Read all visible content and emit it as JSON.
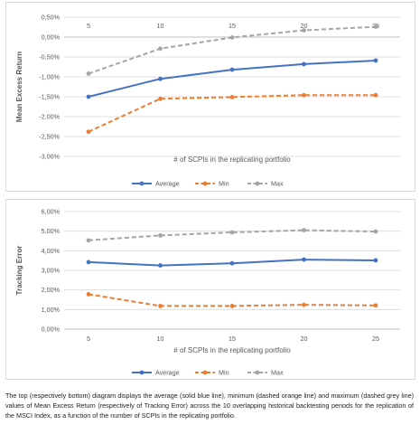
{
  "caption": "The top (respectively bottom) diagram displays the average (solid blue line), minimum (dashed orange line) and maximum (dashed grey line) values of Mean Excess Return (respectively of Tracking Error) across the 10 overlapping historical backtesting periods for the replication of the MSCI Index, as a function of the number of SCPIs in the replicating portfolio.",
  "colors": {
    "average": "#4472c4",
    "min": "#ed7d31",
    "max": "#a5a5a5",
    "grid": "#d9d9d9",
    "text": "#595959"
  },
  "chart_data": [
    {
      "type": "line",
      "x": [
        5,
        10,
        15,
        20,
        25
      ],
      "xlabel": "# of SCPIs in the replicating portfolio",
      "ylabel": "Mean Excess Return",
      "ylim": [
        -3.0,
        0.5
      ],
      "yticks": [
        0.5,
        0.0,
        -0.5,
        -1.0,
        -1.5,
        -2.0,
        -2.5,
        -3.0
      ],
      "ytick_labels": [
        "0,50%",
        "0,00%",
        "-0,50%",
        "-1,00%",
        "-1,50%",
        "-2,00%",
        "-2,50%",
        "-3,00%"
      ],
      "xtick_labels": [
        "5",
        "10",
        "15",
        "20",
        "25"
      ],
      "x_axis_crosses_at": 0.0,
      "grid": true,
      "legend_position": "bottom",
      "series": [
        {
          "name": "Average",
          "key": "average",
          "style": "solid",
          "values": [
            -1.5,
            -1.05,
            -0.82,
            -0.68,
            -0.59
          ]
        },
        {
          "name": "Min",
          "key": "min",
          "style": "dashed",
          "values": [
            -2.38,
            -1.55,
            -1.51,
            -1.46,
            -1.46
          ]
        },
        {
          "name": "Max",
          "key": "max",
          "style": "dashed",
          "values": [
            -0.92,
            -0.29,
            -0.01,
            0.17,
            0.26
          ]
        }
      ]
    },
    {
      "type": "line",
      "x": [
        5,
        10,
        15,
        20,
        25
      ],
      "xlabel": "# of SCPIs in the replicating portfolio",
      "ylabel": "Tracking Error",
      "ylim": [
        0.0,
        6.0
      ],
      "yticks": [
        6.0,
        5.0,
        4.0,
        3.0,
        2.0,
        1.0,
        0.0
      ],
      "ytick_labels": [
        "6,00%",
        "5,00%",
        "4,00%",
        "3,00%",
        "2,00%",
        "1,00%",
        "0,00%"
      ],
      "xtick_labels": [
        "5",
        "10",
        "15",
        "20",
        "25"
      ],
      "x_axis_crosses_at": 0.0,
      "grid": true,
      "legend_position": "bottom",
      "series": [
        {
          "name": "Average",
          "key": "average",
          "style": "solid",
          "values": [
            3.42,
            3.25,
            3.36,
            3.55,
            3.51
          ]
        },
        {
          "name": "Min",
          "key": "min",
          "style": "dashed",
          "values": [
            1.78,
            1.18,
            1.18,
            1.24,
            1.21
          ]
        },
        {
          "name": "Max",
          "key": "max",
          "style": "dashed",
          "values": [
            4.53,
            4.78,
            4.94,
            5.05,
            4.98
          ]
        }
      ]
    }
  ]
}
